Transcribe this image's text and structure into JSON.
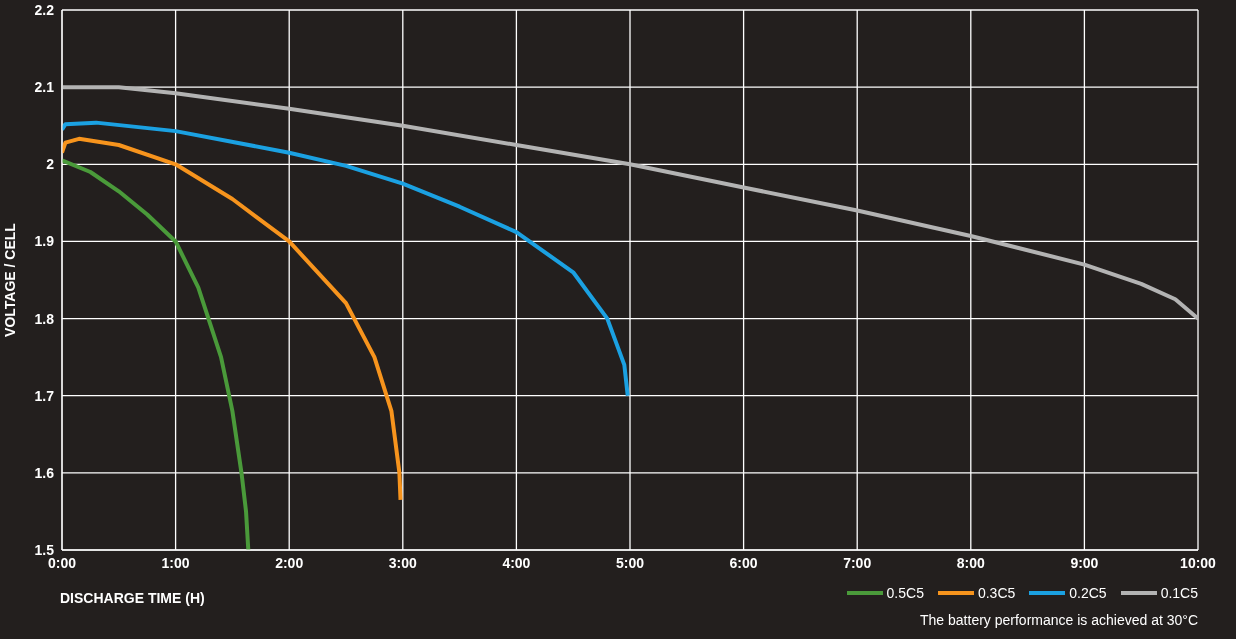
{
  "chart_data": {
    "type": "line",
    "xlabel": "DISCHARGE TIME (H)",
    "ylabel": "VOLTAGE / CELL",
    "xlim": [
      0,
      10
    ],
    "ylim": [
      1.5,
      2.2
    ],
    "xticks": [
      {
        "value": 0,
        "label": "0:00"
      },
      {
        "value": 1,
        "label": "1:00"
      },
      {
        "value": 2,
        "label": "2:00"
      },
      {
        "value": 3,
        "label": "3:00"
      },
      {
        "value": 4,
        "label": "4:00"
      },
      {
        "value": 5,
        "label": "5:00"
      },
      {
        "value": 6,
        "label": "6:00"
      },
      {
        "value": 7,
        "label": "7:00"
      },
      {
        "value": 8,
        "label": "8:00"
      },
      {
        "value": 9,
        "label": "9:00"
      },
      {
        "value": 10,
        "label": "10:00"
      }
    ],
    "yticks": [
      1.5,
      1.6,
      1.7,
      1.8,
      1.9,
      {
        "value": 2,
        "label": "2"
      },
      2.1,
      2.2
    ],
    "grid": true,
    "legend": "bottom right",
    "marker": "none",
    "line_style": "solid",
    "series": [
      {
        "name": "0.5C5",
        "color": "#4a9a3a",
        "x": [
          0,
          0.25,
          0.5,
          0.75,
          1,
          1.2,
          1.4,
          1.5,
          1.58,
          1.62,
          1.64
        ],
        "values": [
          2.005,
          1.99,
          1.965,
          1.935,
          1.9,
          1.84,
          1.75,
          1.68,
          1.6,
          1.55,
          1.5
        ]
      },
      {
        "name": "0.3C5",
        "color": "#f7941d",
        "x": [
          0,
          0.03,
          0.15,
          0.5,
          1,
          1.5,
          2,
          2.5,
          2.75,
          2.9,
          2.97,
          2.98
        ],
        "values": [
          2.015,
          2.028,
          2.033,
          2.025,
          2,
          1.955,
          1.9,
          1.82,
          1.75,
          1.68,
          1.6,
          1.565
        ]
      },
      {
        "name": "0.2C5",
        "color": "#1ba1e2",
        "x": [
          0,
          0.03,
          0.3,
          1,
          2,
          2.5,
          3,
          3.5,
          4,
          4.5,
          4.8,
          4.95,
          4.98
        ],
        "values": [
          2.045,
          2.052,
          2.054,
          2.043,
          2.015,
          1.998,
          1.975,
          1.945,
          1.912,
          1.86,
          1.8,
          1.74,
          1.7
        ]
      },
      {
        "name": "0.1C5",
        "color": "#b3b3b3",
        "x": [
          0,
          0.5,
          1,
          2,
          3,
          4,
          5,
          6,
          7,
          8,
          9,
          9.5,
          9.8,
          10
        ],
        "values": [
          2.1,
          2.1,
          2.092,
          2.072,
          2.05,
          2.025,
          2,
          1.97,
          1.94,
          1.907,
          1.87,
          1.845,
          1.825,
          1.8
        ]
      }
    ],
    "annotations": [
      "The battery performance is achieved at 30°C"
    ]
  }
}
